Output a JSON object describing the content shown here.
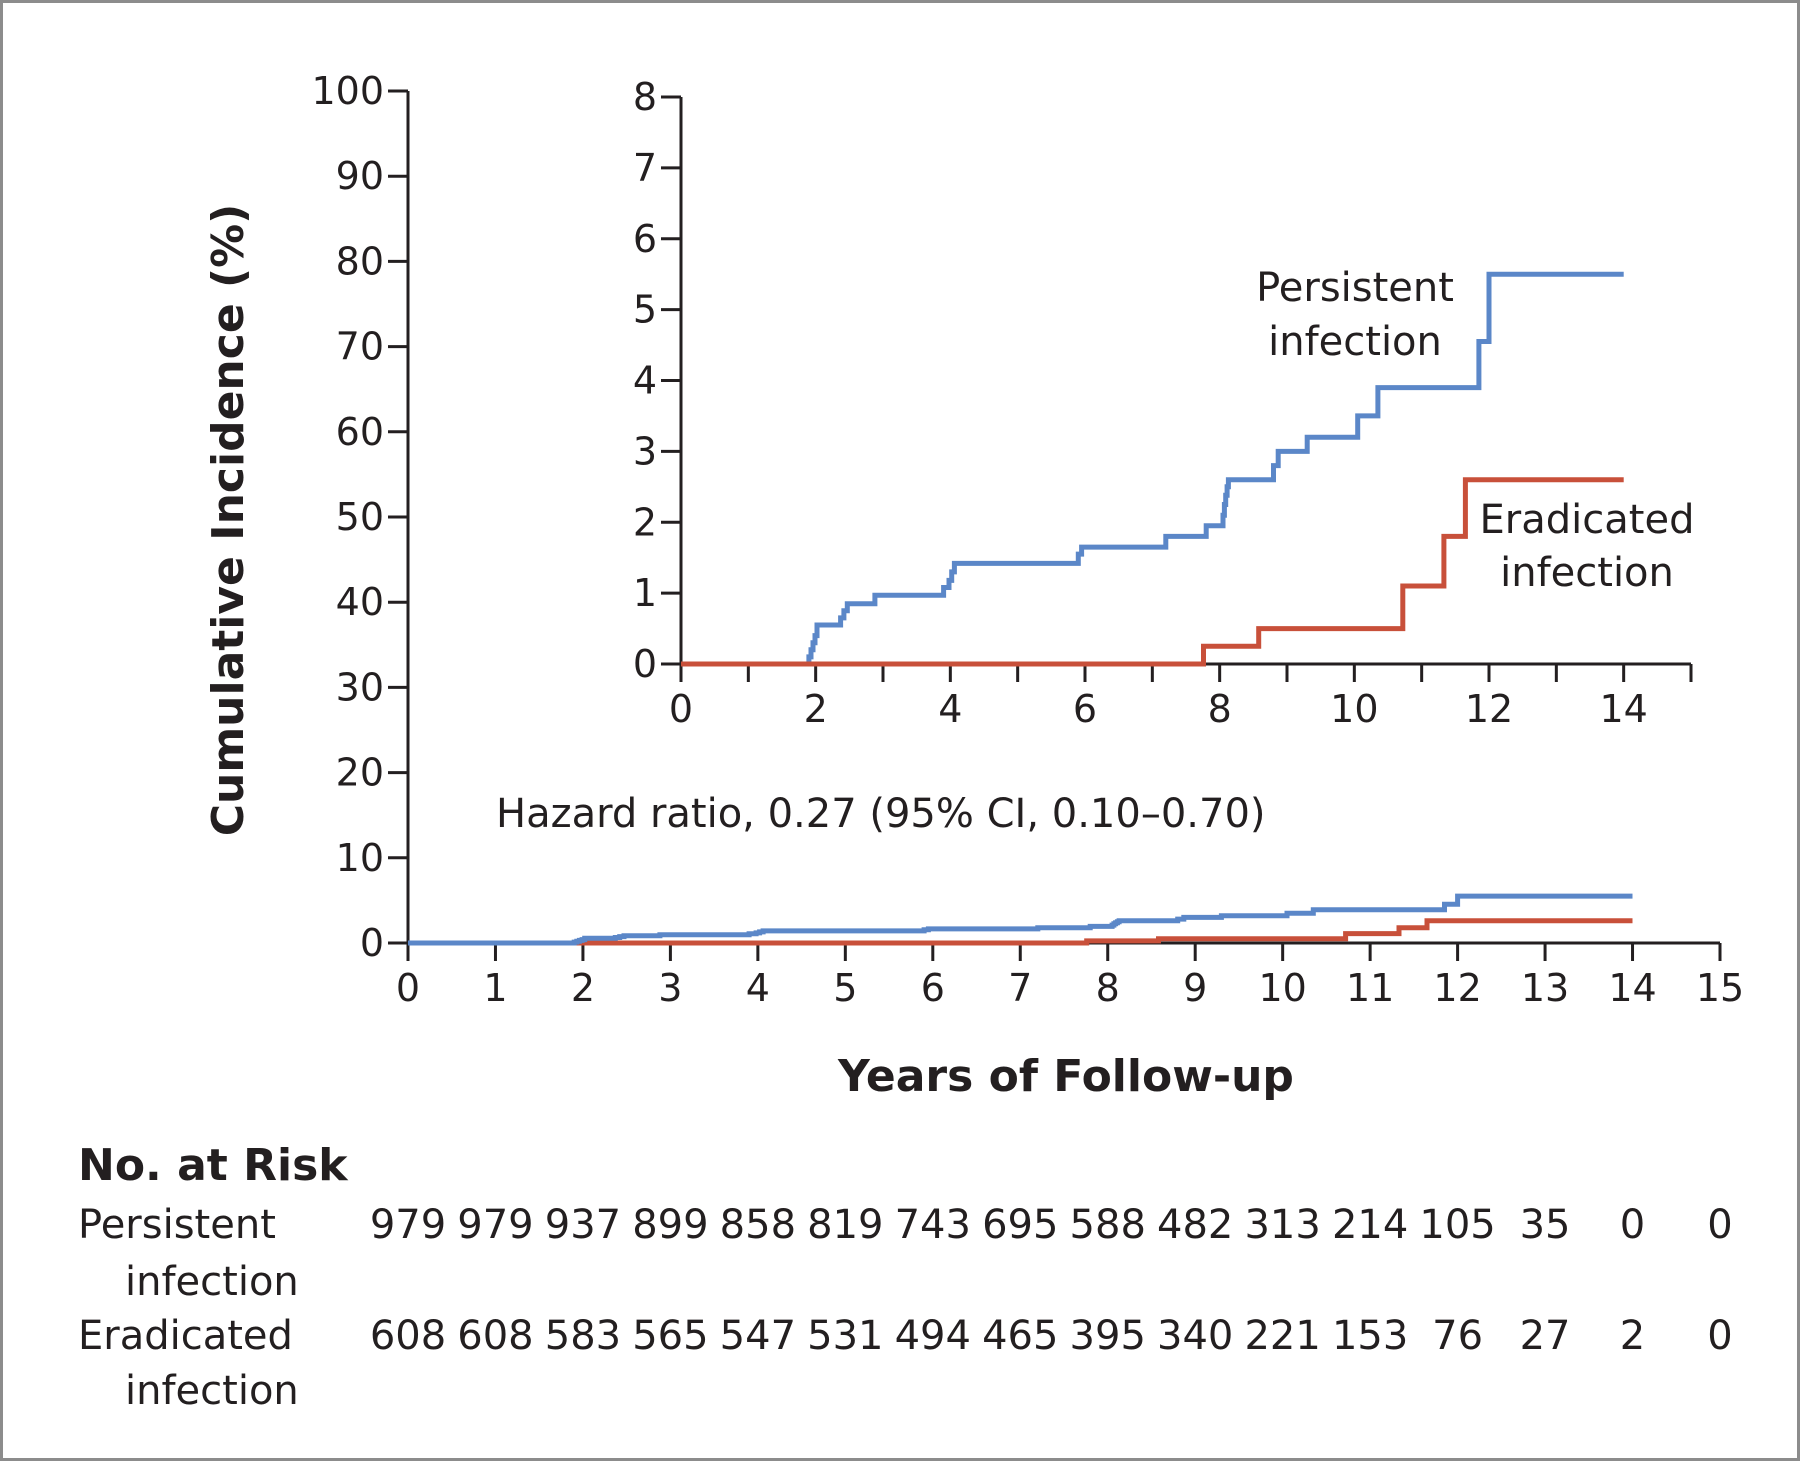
{
  "chart_data": [
    {
      "type": "line",
      "name": "main",
      "xlabel": "Years of Follow-up",
      "ylabel": "Cumulative Incidence (%)",
      "xlim": [
        0,
        15
      ],
      "ylim": [
        0,
        100
      ],
      "xticks": [
        0,
        1,
        2,
        3,
        4,
        5,
        6,
        7,
        8,
        9,
        10,
        11,
        12,
        13,
        14,
        15
      ],
      "yticks": [
        0,
        10,
        20,
        30,
        40,
        50,
        60,
        70,
        80,
        90,
        100
      ],
      "annotation": "Hazard ratio, 0.27 (95% CI, 0.10–0.70)",
      "series_refs": [
        "persistent",
        "eradicated"
      ]
    },
    {
      "type": "line",
      "name": "inset",
      "xlim": [
        0,
        15
      ],
      "ylim": [
        0,
        8
      ],
      "xticks": [
        0,
        2,
        4,
        6,
        8,
        10,
        12,
        14
      ],
      "yticks": [
        0,
        1,
        2,
        3,
        4,
        5,
        6,
        7,
        8
      ],
      "series_refs": [
        "persistent",
        "eradicated"
      ]
    }
  ],
  "series": {
    "persistent": {
      "label_line1": "Persistent",
      "label_line2": "infection",
      "color": "#5b87c8",
      "steps": [
        [
          0,
          0
        ],
        [
          1.88,
          0
        ],
        [
          1.9,
          0.1
        ],
        [
          1.93,
          0.2
        ],
        [
          1.96,
          0.3
        ],
        [
          1.99,
          0.4
        ],
        [
          2.02,
          0.55
        ],
        [
          2.3,
          0.55
        ],
        [
          2.37,
          0.65
        ],
        [
          2.42,
          0.75
        ],
        [
          2.47,
          0.85
        ],
        [
          2.85,
          0.85
        ],
        [
          2.88,
          0.97
        ],
        [
          3.85,
          0.97
        ],
        [
          3.9,
          1.08
        ],
        [
          3.98,
          1.18
        ],
        [
          4.02,
          1.3
        ],
        [
          4.06,
          1.42
        ],
        [
          5.85,
          1.42
        ],
        [
          5.9,
          1.55
        ],
        [
          5.95,
          1.65
        ],
        [
          7.15,
          1.65
        ],
        [
          7.2,
          1.8
        ],
        [
          7.75,
          1.8
        ],
        [
          7.8,
          1.95
        ],
        [
          8.0,
          1.95
        ],
        [
          8.05,
          2.1
        ],
        [
          8.07,
          2.25
        ],
        [
          8.09,
          2.38
        ],
        [
          8.11,
          2.5
        ],
        [
          8.13,
          2.6
        ],
        [
          8.75,
          2.6
        ],
        [
          8.8,
          2.8
        ],
        [
          8.87,
          3.0
        ],
        [
          9.25,
          3.0
        ],
        [
          9.3,
          3.2
        ],
        [
          10.0,
          3.2
        ],
        [
          10.05,
          3.5
        ],
        [
          10.3,
          3.5
        ],
        [
          10.35,
          3.9
        ],
        [
          11.8,
          3.9
        ],
        [
          11.85,
          4.55
        ],
        [
          11.98,
          4.55
        ],
        [
          12.0,
          5.5
        ],
        [
          14.0,
          5.5
        ]
      ]
    },
    "eradicated": {
      "label_line1": "Eradicated",
      "label_line2": "infection",
      "color": "#c8503a",
      "steps": [
        [
          0,
          0
        ],
        [
          7.72,
          0
        ],
        [
          7.76,
          0.25
        ],
        [
          8.55,
          0.25
        ],
        [
          8.58,
          0.5
        ],
        [
          10.7,
          0.5
        ],
        [
          10.72,
          1.1
        ],
        [
          11.3,
          1.1
        ],
        [
          11.33,
          1.8
        ],
        [
          11.62,
          1.8
        ],
        [
          11.65,
          2.6
        ],
        [
          14.0,
          2.6
        ]
      ]
    }
  },
  "risk_table": {
    "title": "No. at Risk",
    "rows": [
      {
        "label_line1": "Persistent",
        "label_line2": "infection",
        "values": [
          "979",
          "979",
          "937",
          "899",
          "858",
          "819",
          "743",
          "695",
          "588",
          "482",
          "313",
          "214",
          "105",
          "35",
          "0",
          "0"
        ]
      },
      {
        "label_line1": "Eradicated",
        "label_line2": "infection",
        "values": [
          "608",
          "608",
          "583",
          "565",
          "547",
          "531",
          "494",
          "465",
          "395",
          "340",
          "221",
          "153",
          "76",
          "27",
          "2",
          "0"
        ]
      }
    ]
  }
}
